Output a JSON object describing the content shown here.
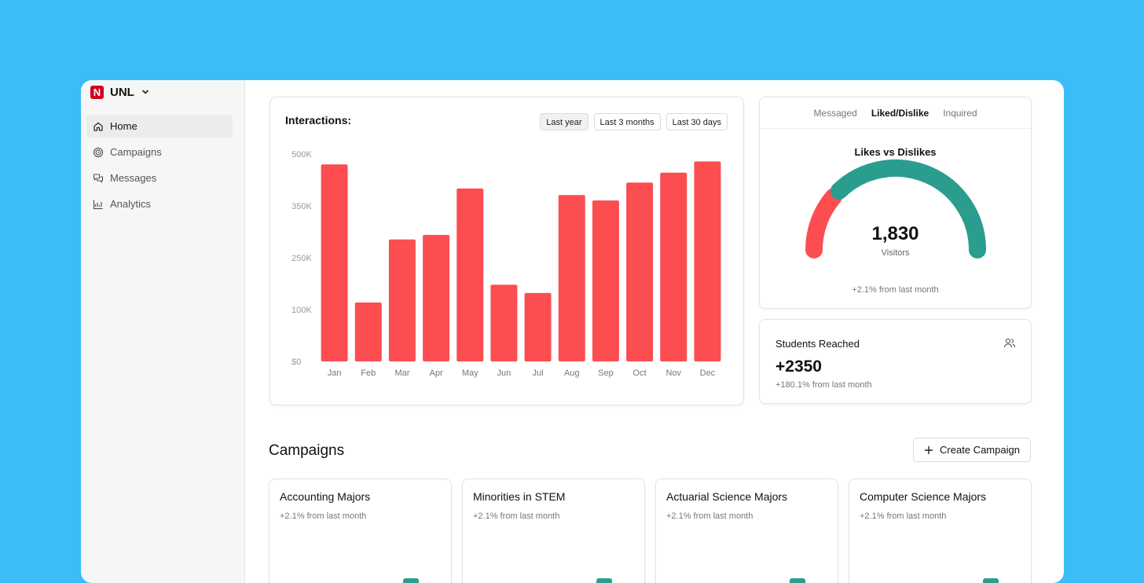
{
  "brand": {
    "logo_letter": "N",
    "name": "UNL"
  },
  "sidebar": {
    "items": [
      {
        "label": "Home",
        "icon": "home-icon",
        "active": true
      },
      {
        "label": "Campaigns",
        "icon": "target-icon",
        "active": false
      },
      {
        "label": "Messages",
        "icon": "messages-icon",
        "active": false
      },
      {
        "label": "Analytics",
        "icon": "analytics-icon",
        "active": false
      }
    ]
  },
  "interactions": {
    "title": "Interactions:",
    "ranges": [
      "Last year",
      "Last 3 months",
      "Last 30 days"
    ],
    "active_range": "Last year"
  },
  "chart_data": {
    "type": "bar",
    "categories": [
      "Jan",
      "Feb",
      "Mar",
      "Apr",
      "May",
      "Jun",
      "Jul",
      "Aug",
      "Sep",
      "Oct",
      "Nov",
      "Dec"
    ],
    "values": [
      475000,
      142000,
      294000,
      305000,
      417000,
      185000,
      165000,
      401000,
      388000,
      431000,
      455000,
      482000
    ],
    "yticks": [
      0,
      100000,
      250000,
      350000,
      500000
    ],
    "ytick_labels": [
      "$0",
      "100K",
      "250K",
      "350K",
      "500K"
    ],
    "ylim": [
      0,
      500000
    ],
    "title": "Interactions:",
    "color": "#fc4d51"
  },
  "gauge": {
    "tabs": [
      "Messaged",
      "Liked/Dislike",
      "Inquired"
    ],
    "active_tab": "Liked/Dislike",
    "title": "Likes vs Dislikes",
    "value": "1,830",
    "label": "Visitors",
    "footer": "+2.1% from last month",
    "likes_color": "#2a9d8f",
    "dislikes_color": "#fc4d51",
    "dislike_fraction": 0.24
  },
  "students": {
    "title": "Students Reached",
    "value": "+2350",
    "footer": "+180.1% from last month",
    "icon": "users-icon"
  },
  "campaigns": {
    "title": "Campaigns",
    "create_label": "Create Campaign",
    "bar_color": "#2a9d8f",
    "items": [
      {
        "name": "Accounting Majors",
        "sub": "+2.1% from last month"
      },
      {
        "name": "Minorities in STEM",
        "sub": "+2.1% from last month"
      },
      {
        "name": "Actuarial Science Majors",
        "sub": "+2.1% from last month"
      },
      {
        "name": "Computer Science Majors",
        "sub": "+2.1% from last month"
      }
    ]
  }
}
